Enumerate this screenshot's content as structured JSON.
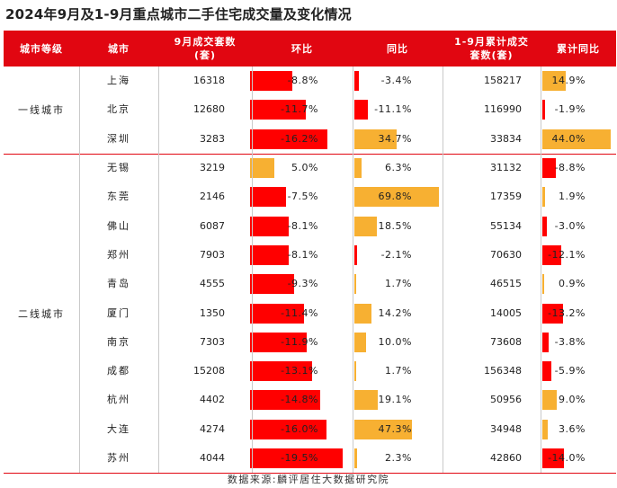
{
  "title": "2024年9月及1-9月重点城市二手住宅成交量及变化情况",
  "headers": {
    "tier": "城市等级",
    "city": "城市",
    "sep_volume": [
      "9月成交套数",
      "(套)"
    ],
    "mom": "环比",
    "yoy": "同比",
    "ytd_volume": [
      "1-9月累计成交",
      "套数(套)"
    ],
    "ytd_yoy": "累计同比"
  },
  "groups": [
    {
      "tier": "一线城市",
      "rows": [
        {
          "city": "上海",
          "sep": "16318",
          "mom": "-8.8%",
          "mom_v": -8.8,
          "yoy": "-3.4%",
          "yoy_v": -3.4,
          "ytd": "158217",
          "ytd_yoy": "14.9%",
          "ytd_yoy_v": 14.9
        },
        {
          "city": "北京",
          "sep": "12680",
          "mom": "-11.7%",
          "mom_v": -11.7,
          "yoy": "-11.1%",
          "yoy_v": -11.1,
          "ytd": "116990",
          "ytd_yoy": "-1.9%",
          "ytd_yoy_v": -1.9
        },
        {
          "city": "深圳",
          "sep": "3283",
          "mom": "-16.2%",
          "mom_v": -16.2,
          "yoy": "34.7%",
          "yoy_v": 34.7,
          "ytd": "33834",
          "ytd_yoy": "44.0%",
          "ytd_yoy_v": 44.0
        }
      ]
    },
    {
      "tier": "二线城市",
      "rows": [
        {
          "city": "无锡",
          "sep": "3219",
          "mom": "5.0%",
          "mom_v": 5.0,
          "yoy": "6.3%",
          "yoy_v": 6.3,
          "ytd": "31132",
          "ytd_yoy": "-8.8%",
          "ytd_yoy_v": -8.8
        },
        {
          "city": "东莞",
          "sep": "2146",
          "mom": "-7.5%",
          "mom_v": -7.5,
          "yoy": "69.8%",
          "yoy_v": 69.8,
          "ytd": "17359",
          "ytd_yoy": "1.9%",
          "ytd_yoy_v": 1.9
        },
        {
          "city": "佛山",
          "sep": "6087",
          "mom": "-8.1%",
          "mom_v": -8.1,
          "yoy": "18.5%",
          "yoy_v": 18.5,
          "ytd": "55134",
          "ytd_yoy": "-3.0%",
          "ytd_yoy_v": -3.0
        },
        {
          "city": "郑州",
          "sep": "7903",
          "mom": "-8.1%",
          "mom_v": -8.1,
          "yoy": "-2.1%",
          "yoy_v": -2.1,
          "ytd": "70630",
          "ytd_yoy": "-12.1%",
          "ytd_yoy_v": -12.1
        },
        {
          "city": "青岛",
          "sep": "4555",
          "mom": "-9.3%",
          "mom_v": -9.3,
          "yoy": "1.7%",
          "yoy_v": 1.7,
          "ytd": "46515",
          "ytd_yoy": "0.9%",
          "ytd_yoy_v": 0.9
        },
        {
          "city": "厦门",
          "sep": "1350",
          "mom": "-11.4%",
          "mom_v": -11.4,
          "yoy": "14.2%",
          "yoy_v": 14.2,
          "ytd": "14005",
          "ytd_yoy": "-13.2%",
          "ytd_yoy_v": -13.2
        },
        {
          "city": "南京",
          "sep": "7303",
          "mom": "-11.9%",
          "mom_v": -11.9,
          "yoy": "10.0%",
          "yoy_v": 10.0,
          "ytd": "73608",
          "ytd_yoy": "-3.8%",
          "ytd_yoy_v": -3.8
        },
        {
          "city": "成都",
          "sep": "15208",
          "mom": "-13.1%",
          "mom_v": -13.1,
          "yoy": "1.7%",
          "yoy_v": 1.7,
          "ytd": "156348",
          "ytd_yoy": "-5.9%",
          "ytd_yoy_v": -5.9
        },
        {
          "city": "杭州",
          "sep": "4402",
          "mom": "-14.8%",
          "mom_v": -14.8,
          "yoy": "19.1%",
          "yoy_v": 19.1,
          "ytd": "50956",
          "ytd_yoy": "9.0%",
          "ytd_yoy_v": 9.0
        },
        {
          "city": "大连",
          "sep": "4274",
          "mom": "-16.0%",
          "mom_v": -16.0,
          "yoy": "47.3%",
          "yoy_v": 47.3,
          "ytd": "34948",
          "ytd_yoy": "3.6%",
          "ytd_yoy_v": 3.6
        },
        {
          "city": "苏州",
          "sep": "4044",
          "mom": "-19.5%",
          "mom_v": -19.5,
          "yoy": "2.3%",
          "yoy_v": 2.3,
          "ytd": "42860",
          "ytd_yoy": "-14.0%",
          "ytd_yoy_v": -14.0
        }
      ]
    }
  ],
  "source": "数据来源:麟评居住大数据研究院",
  "colors": {
    "header_bg": "#e10611",
    "positive_bar": "#f7b032",
    "negative_bar": "#ff0000"
  }
}
